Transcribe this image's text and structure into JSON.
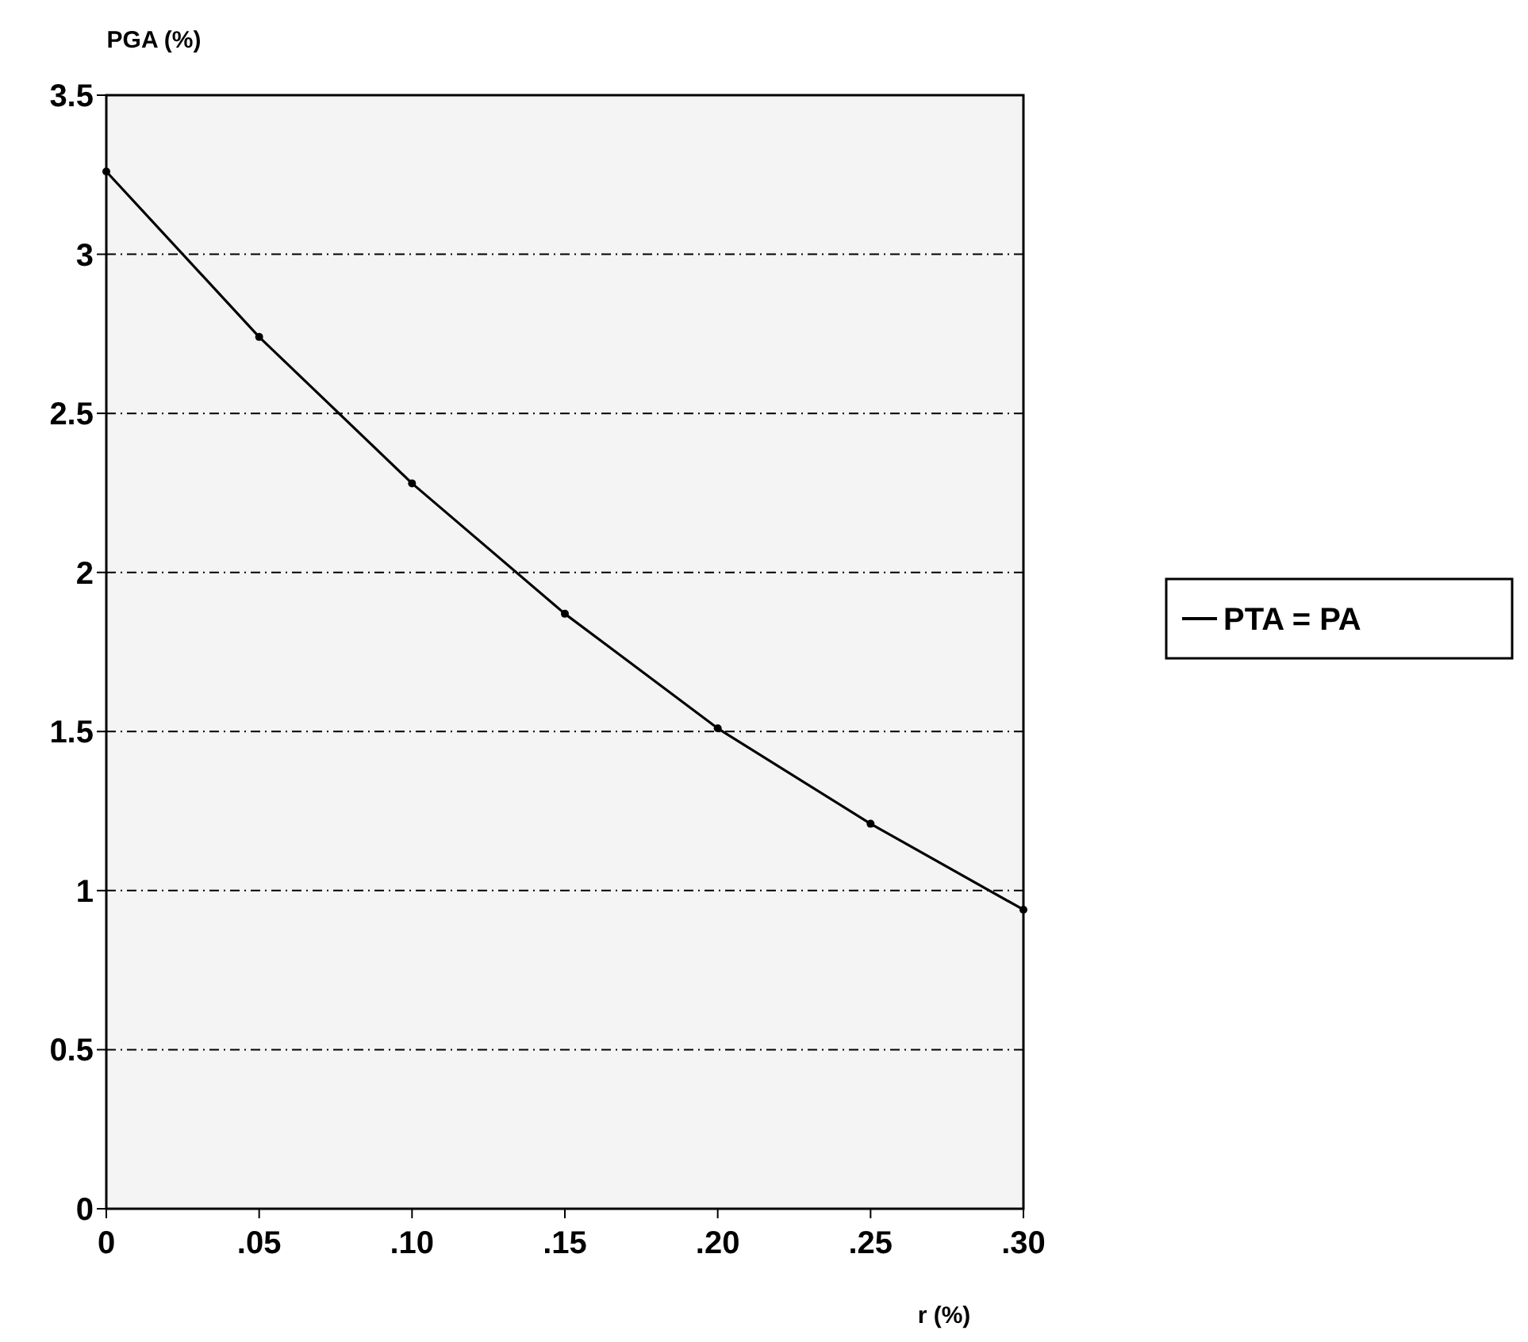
{
  "chart_data": {
    "type": "line",
    "xlabel": "r (%)",
    "ylabel": "PGA (%)",
    "x": [
      0,
      0.05,
      0.1,
      0.15,
      0.2,
      0.25,
      0.3
    ],
    "series": [
      {
        "name": "PTA = PA",
        "color": "#000000",
        "values": [
          3.26,
          2.74,
          2.28,
          1.87,
          1.51,
          1.21,
          0.94
        ]
      }
    ],
    "xlim": [
      0,
      0.3
    ],
    "xticks": [
      0,
      {
        "value": 0.05,
        "label": ".05"
      },
      {
        "value": 0.1,
        "label": ".10"
      },
      {
        "value": 0.15,
        "label": ".15"
      },
      {
        "value": 0.2,
        "label": ".20"
      },
      {
        "value": 0.25,
        "label": ".25"
      },
      {
        "value": 0.3,
        "label": ".30"
      }
    ],
    "ylim": [
      0,
      3.5
    ],
    "yticks": [
      0,
      0.5,
      1,
      1.5,
      2,
      2.5,
      3,
      3.5
    ],
    "grid": "y",
    "legend": "right",
    "marker": "circle",
    "line_style": "solid"
  }
}
